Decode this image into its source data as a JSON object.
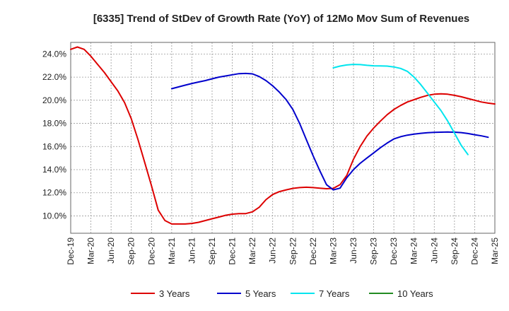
{
  "chart_data": {
    "type": "line",
    "title": "[6335]  Trend of StDev of Growth Rate (YoY) of 12Mo Mov Sum of Revenues",
    "xlabel": "",
    "ylabel": "",
    "ylim": [
      8.5,
      25.0
    ],
    "y_ticks": [
      10,
      12,
      14,
      16,
      18,
      20,
      22,
      24
    ],
    "y_tick_labels": [
      "10.0%",
      "12.0%",
      "14.0%",
      "16.0%",
      "18.0%",
      "20.0%",
      "22.0%",
      "24.0%"
    ],
    "x_tick_labels": [
      "Dec-19",
      "Mar-20",
      "Jun-20",
      "Sep-20",
      "Dec-20",
      "Mar-21",
      "Jun-21",
      "Sep-21",
      "Dec-21",
      "Mar-22",
      "Jun-22",
      "Sep-22",
      "Dec-22",
      "Mar-23",
      "Jun-23",
      "Sep-23",
      "Dec-23",
      "Mar-24",
      "Jun-24",
      "Sep-24",
      "Dec-24",
      "Mar-25"
    ],
    "x_month_range": [
      0,
      63
    ],
    "grid": true,
    "legend_position": "bottom",
    "series": [
      {
        "name": "3 Years",
        "color": "#dd0000",
        "start_month": 0,
        "values": [
          24.4,
          24.6,
          24.4,
          23.8,
          23.1,
          22.4,
          21.6,
          20.8,
          19.8,
          18.4,
          16.6,
          14.6,
          12.6,
          10.5,
          9.6,
          9.3,
          9.3,
          9.3,
          9.35,
          9.45,
          9.6,
          9.75,
          9.9,
          10.05,
          10.15,
          10.2,
          10.2,
          10.35,
          10.75,
          11.4,
          11.85,
          12.1,
          12.25,
          12.38,
          12.45,
          12.48,
          12.45,
          12.4,
          12.35,
          12.38,
          12.7,
          13.5,
          14.9,
          16.0,
          16.9,
          17.6,
          18.2,
          18.75,
          19.2,
          19.55,
          19.85,
          20.05,
          20.25,
          20.42,
          20.52,
          20.56,
          20.52,
          20.42,
          20.3,
          20.15,
          20.0,
          19.85,
          19.75,
          19.68
        ]
      },
      {
        "name": "5 Years",
        "color": "#0000cc",
        "start_month": 15,
        "values": [
          21.0,
          21.15,
          21.3,
          21.45,
          21.58,
          21.7,
          21.85,
          22.0,
          22.1,
          22.2,
          22.3,
          22.32,
          22.28,
          22.05,
          21.7,
          21.25,
          20.7,
          20.05,
          19.2,
          18.0,
          16.6,
          15.2,
          13.9,
          12.7,
          12.25,
          12.4,
          13.3,
          14.0,
          14.55,
          15.0,
          15.45,
          15.9,
          16.3,
          16.65,
          16.85,
          16.98,
          17.07,
          17.14,
          17.19,
          17.22,
          17.24,
          17.25,
          17.24,
          17.2,
          17.12,
          17.02,
          16.92,
          16.8
        ]
      },
      {
        "name": "7 Years",
        "color": "#00e5ee",
        "start_month": 39,
        "values": [
          22.8,
          22.95,
          23.05,
          23.1,
          23.08,
          23.02,
          22.98,
          22.97,
          22.95,
          22.88,
          22.75,
          22.5,
          22.0,
          21.35,
          20.6,
          19.85,
          19.1,
          18.2,
          17.15,
          16.1,
          15.3
        ]
      },
      {
        "name": "10 Years",
        "color": "#228b22",
        "start_month": 63,
        "values": []
      }
    ]
  }
}
